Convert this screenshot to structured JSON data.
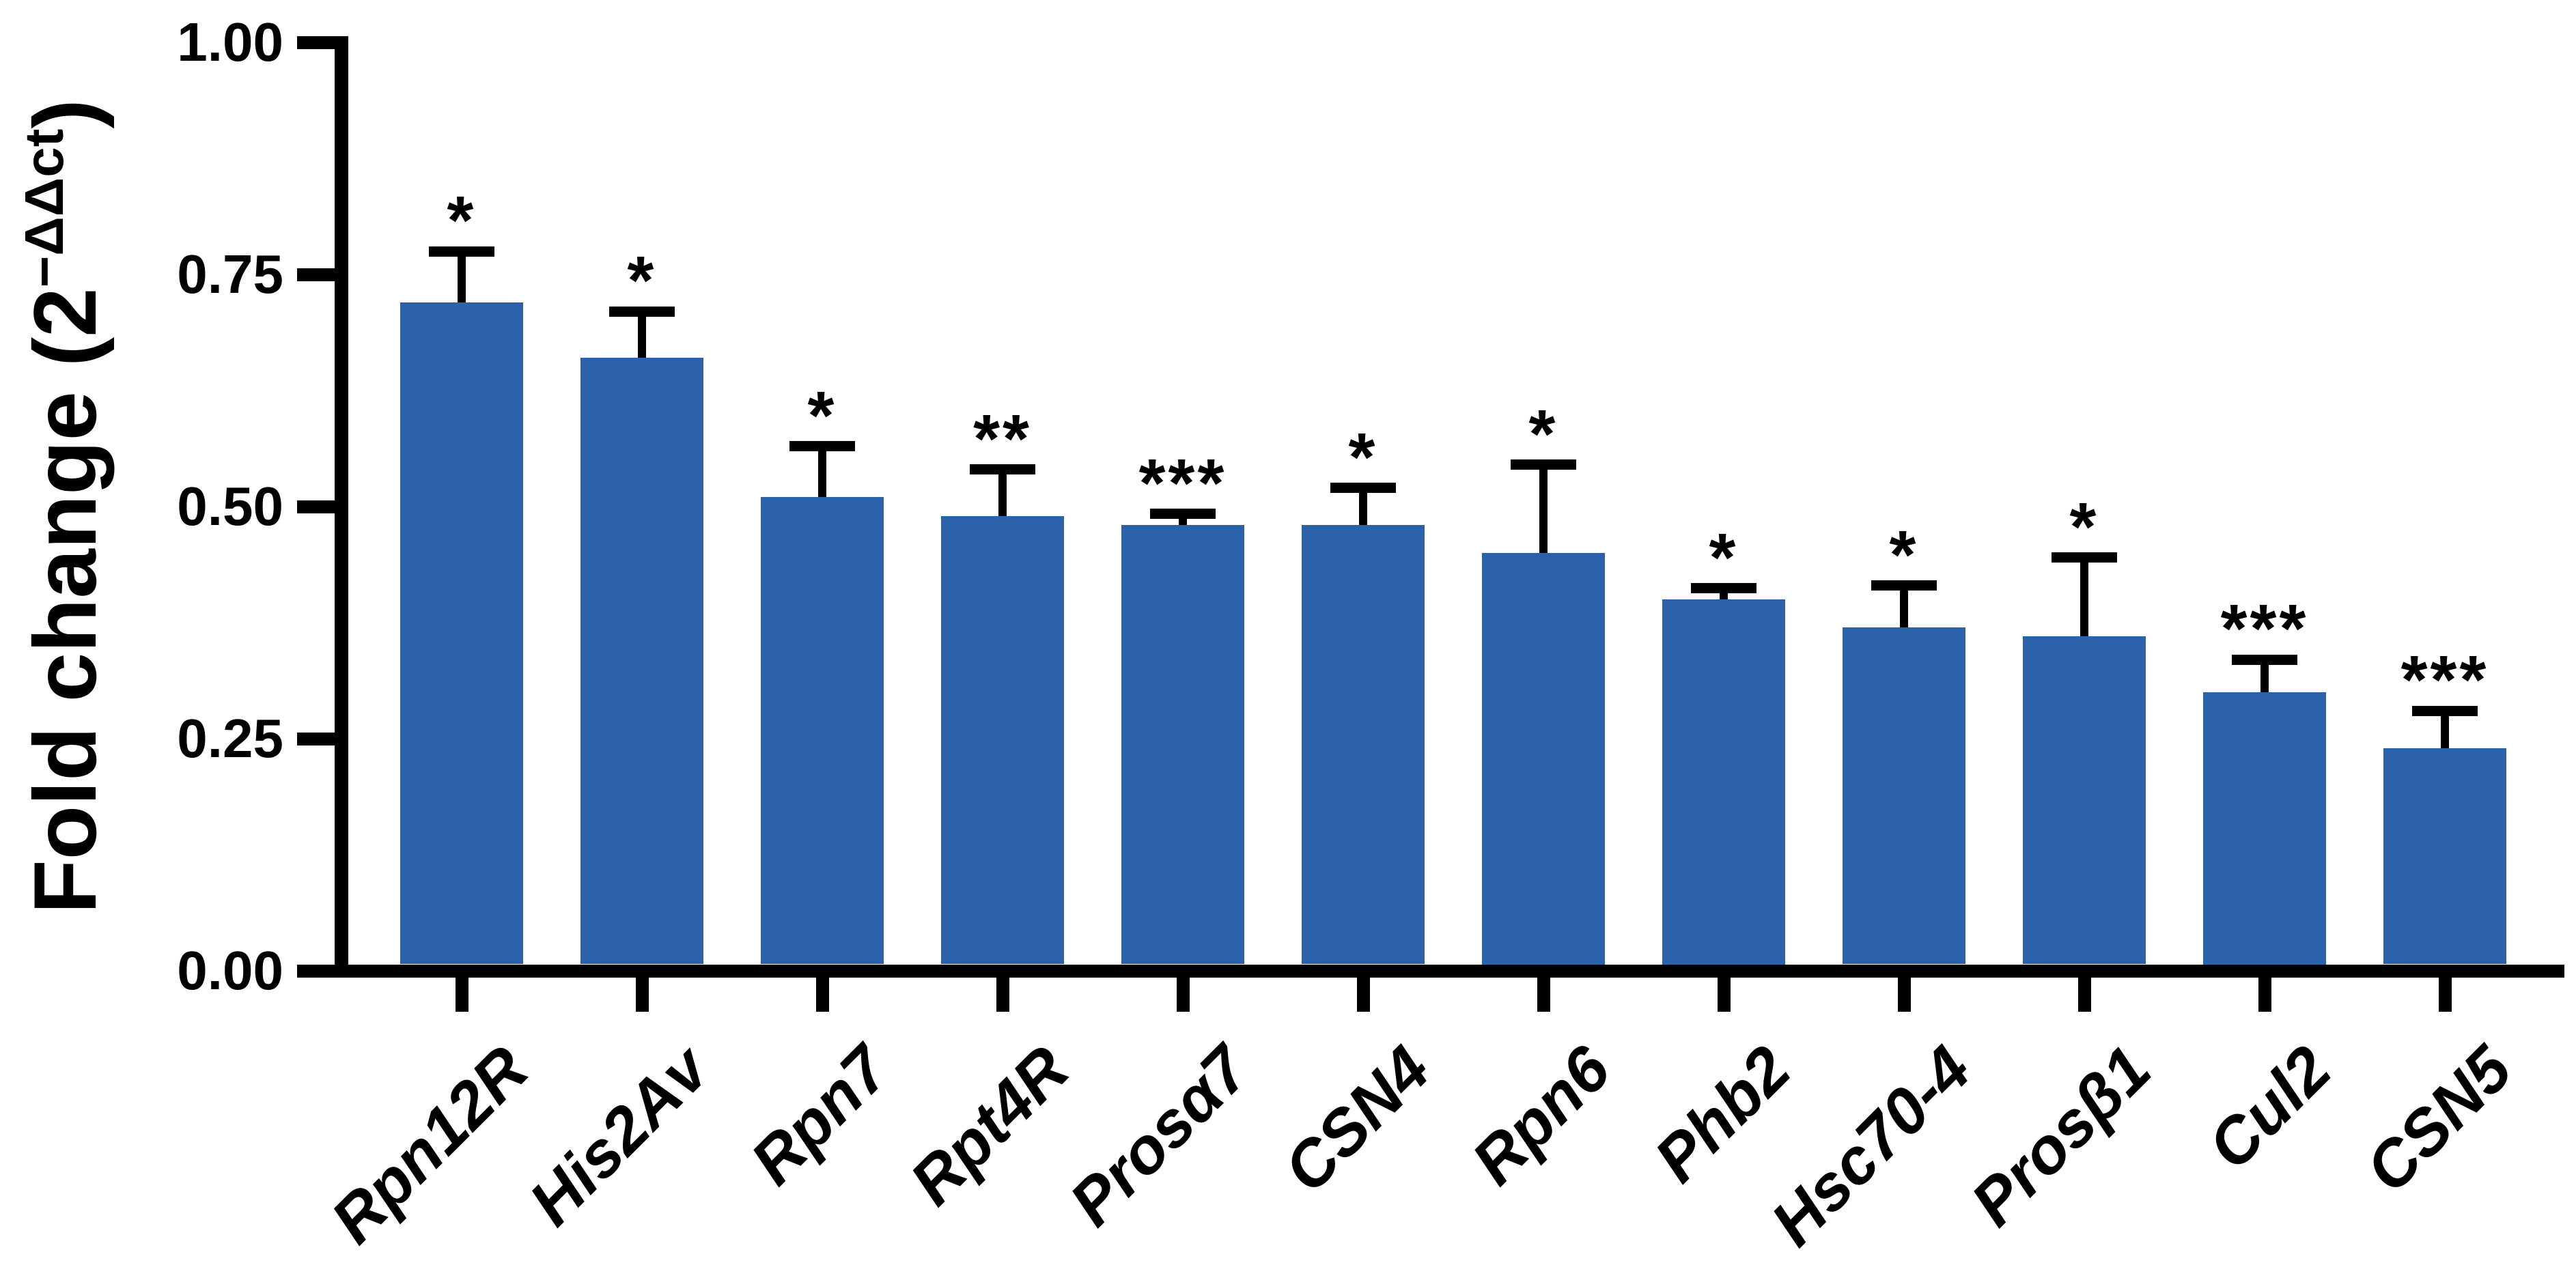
{
  "chart_data": {
    "type": "bar",
    "title": "",
    "ylabel": "Fold change (2−ΔΔct)",
    "ylabel_parts": {
      "main": "Fold change (2",
      "superscript": "−ΔΔct",
      "close": ")"
    },
    "xlabel": "",
    "categories": [
      "Rpn12R",
      "His2Av",
      "Rpn7",
      "Rpt4R",
      "Prosα7",
      "CSN4",
      "Rpn6",
      "Phb2",
      "Hsc70-4",
      "Prosβ1",
      "Cul2",
      "CSN5"
    ],
    "values": [
      0.72,
      0.66,
      0.51,
      0.49,
      0.48,
      0.48,
      0.45,
      0.4,
      0.37,
      0.36,
      0.3,
      0.24
    ],
    "errors_upper": [
      0.055,
      0.05,
      0.055,
      0.05,
      0.012,
      0.04,
      0.095,
      0.012,
      0.045,
      0.085,
      0.035,
      0.04
    ],
    "significance": [
      "*",
      "*",
      "*",
      "**",
      "***",
      "*",
      "*",
      "*",
      "*",
      "*",
      "***",
      "***"
    ],
    "y_ticks": [
      {
        "value": 0.0,
        "label": "0.00"
      },
      {
        "value": 0.25,
        "label": "0.25"
      },
      {
        "value": 0.5,
        "label": "0.50"
      },
      {
        "value": 0.75,
        "label": "0.75"
      },
      {
        "value": 1.0,
        "label": "1.00"
      }
    ],
    "ylim": [
      0.0,
      1.0
    ],
    "grid": false,
    "legend": null,
    "error_direction": "upper",
    "bar_color": "#2A61A9",
    "axis_color": "#000000",
    "text_color": "#000000",
    "background_color": "#FFFFFF"
  }
}
